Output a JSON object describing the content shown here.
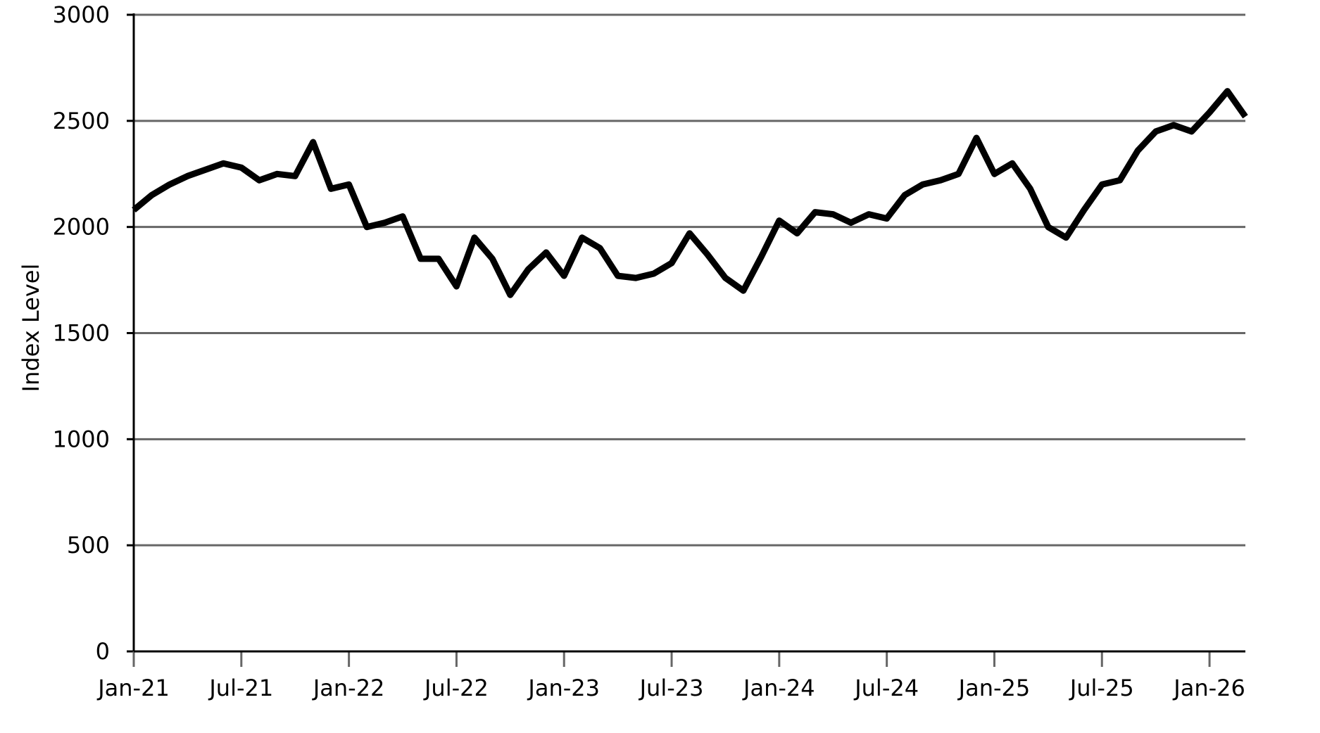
{
  "chart_data": {
    "type": "line",
    "ylabel": "Index Level",
    "x": [
      "2021-01",
      "2021-02",
      "2021-03",
      "2021-04",
      "2021-05",
      "2021-06",
      "2021-07",
      "2021-08",
      "2021-09",
      "2021-10",
      "2021-11",
      "2021-12",
      "2022-01",
      "2022-02",
      "2022-03",
      "2022-04",
      "2022-05",
      "2022-06",
      "2022-07",
      "2022-08",
      "2022-09",
      "2022-10",
      "2022-11",
      "2022-12",
      "2023-01",
      "2023-02",
      "2023-03",
      "2023-04",
      "2023-05",
      "2023-06",
      "2023-07",
      "2023-08",
      "2023-09",
      "2023-10",
      "2023-11",
      "2023-12",
      "2024-01",
      "2024-02",
      "2024-03",
      "2024-04",
      "2024-05",
      "2024-06",
      "2024-07",
      "2024-08",
      "2024-09",
      "2024-10",
      "2024-11",
      "2024-12",
      "2025-01",
      "2025-02",
      "2025-03",
      "2025-04",
      "2025-05",
      "2025-06",
      "2025-07",
      "2025-08",
      "2025-09",
      "2025-10",
      "2025-11",
      "2025-12",
      "2026-01",
      "2026-02",
      "2026-03"
    ],
    "values": [
      2080,
      2150,
      2200,
      2240,
      2270,
      2300,
      2280,
      2220,
      2250,
      2240,
      2400,
      2180,
      2200,
      2000,
      2020,
      2050,
      1850,
      1850,
      1720,
      1950,
      1850,
      1680,
      1800,
      1880,
      1770,
      1950,
      1900,
      1770,
      1760,
      1780,
      1830,
      1970,
      1870,
      1760,
      1700,
      1860,
      2030,
      1970,
      2070,
      2060,
      2020,
      2060,
      2040,
      2150,
      2200,
      2220,
      2250,
      2420,
      2250,
      2300,
      2180,
      2000,
      1950,
      2080,
      2200,
      2220,
      2360,
      2450,
      2480,
      2450,
      2540,
      2640,
      2520
    ],
    "color": "#000000",
    "xlim": [
      "2021-01",
      "2026-03"
    ],
    "xticks": [
      {
        "value": "2021-01",
        "label": "Jan-21"
      },
      {
        "value": "2021-07",
        "label": "Jul-21"
      },
      {
        "value": "2022-01",
        "label": "Jan-22"
      },
      {
        "value": "2022-07",
        "label": "Jul-22"
      },
      {
        "value": "2023-01",
        "label": "Jan-23"
      },
      {
        "value": "2023-07",
        "label": "Jul-23"
      },
      {
        "value": "2024-01",
        "label": "Jan-24"
      },
      {
        "value": "2024-07",
        "label": "Jul-24"
      },
      {
        "value": "2025-01",
        "label": "Jan-25"
      },
      {
        "value": "2025-07",
        "label": "Jul-25"
      },
      {
        "value": "2026-01",
        "label": "Jan-26"
      }
    ],
    "ylim": [
      0,
      3000
    ],
    "yticks": [
      0,
      500,
      1000,
      1500,
      2000,
      2500,
      3000
    ],
    "grid": true
  }
}
